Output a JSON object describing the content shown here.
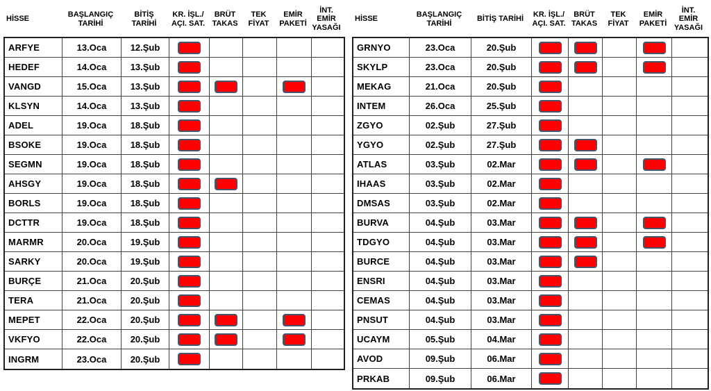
{
  "page": {
    "background": "#ffffff"
  },
  "colors": {
    "badge_fill": "#ff0000",
    "badge_border": "#44546a",
    "grid_line": "#3f3f3f",
    "outer_border": "#1f1f1f",
    "text": "#000000"
  },
  "column_keys": [
    "hisse",
    "baslangic-tarihi",
    "bitis-tarihi",
    "kr-isl-aci-sat",
    "brut-takas",
    "tek-fiyat",
    "emir-paketi",
    "int-emir-yasagi"
  ],
  "flag_keys": [
    "kr-isl-aci-sat",
    "brut-takas",
    "tek-fiyat",
    "emir-paketi",
    "int-emir-yasagi"
  ],
  "tables": [
    {
      "name": "left",
      "headers": [
        "HİSSE",
        "BAŞLANGIÇ\nTARİHİ",
        "BİTİŞ\nTARİHİ",
        "KR. İŞL./\nAÇI. SAT.",
        "BRÜT\nTAKAS",
        "TEK\nFİYAT",
        "EMİR\nPAKETİ",
        "İNT.\nEMİR\nYASAĞI"
      ],
      "rows": [
        {
          "hisse": "ARFYE",
          "baslangic": "13.Oca",
          "bitis": "12.Şub",
          "flags": [
            1,
            0,
            0,
            0,
            0
          ]
        },
        {
          "hisse": "HEDEF",
          "baslangic": "14.Oca",
          "bitis": "13.Şub",
          "flags": [
            1,
            0,
            0,
            0,
            0
          ]
        },
        {
          "hisse": "VANGD",
          "baslangic": "15.Oca",
          "bitis": "13.Şub",
          "flags": [
            1,
            1,
            0,
            1,
            0
          ]
        },
        {
          "hisse": "KLSYN",
          "baslangic": "14.Oca",
          "bitis": "13.Şub",
          "flags": [
            1,
            0,
            0,
            0,
            0
          ]
        },
        {
          "hisse": "ADEL",
          "baslangic": "19.Oca",
          "bitis": "18.Şub",
          "flags": [
            1,
            0,
            0,
            0,
            0
          ]
        },
        {
          "hisse": "BSOKE",
          "baslangic": "19.Oca",
          "bitis": "18.Şub",
          "flags": [
            1,
            0,
            0,
            0,
            0
          ]
        },
        {
          "hisse": "SEGMN",
          "baslangic": "19.Oca",
          "bitis": "18.Şub",
          "flags": [
            1,
            0,
            0,
            0,
            0
          ]
        },
        {
          "hisse": "AHSGY",
          "baslangic": "19.Oca",
          "bitis": "18.Şub",
          "flags": [
            1,
            1,
            0,
            0,
            0
          ]
        },
        {
          "hisse": "BORLS",
          "baslangic": "19.Oca",
          "bitis": "18.Şub",
          "flags": [
            1,
            0,
            0,
            0,
            0
          ]
        },
        {
          "hisse": "DCTTR",
          "baslangic": "19.Oca",
          "bitis": "18.Şub",
          "flags": [
            1,
            0,
            0,
            0,
            0
          ]
        },
        {
          "hisse": "MARMR",
          "baslangic": "20.Oca",
          "bitis": "19.Şub",
          "flags": [
            1,
            0,
            0,
            0,
            0
          ]
        },
        {
          "hisse": "SARKY",
          "baslangic": "20.Oca",
          "bitis": "19.Şub",
          "flags": [
            1,
            0,
            0,
            0,
            0
          ]
        },
        {
          "hisse": "BURÇE",
          "baslangic": "21.Oca",
          "bitis": "20.Şub",
          "flags": [
            1,
            0,
            0,
            0,
            0
          ]
        },
        {
          "hisse": "TERA",
          "baslangic": "21.Oca",
          "bitis": "20.Şub",
          "flags": [
            1,
            0,
            0,
            0,
            0
          ]
        },
        {
          "hisse": "MEPET",
          "baslangic": "22.Oca",
          "bitis": "20.Şub",
          "flags": [
            1,
            1,
            0,
            1,
            0
          ]
        },
        {
          "hisse": "VKFYO",
          "baslangic": "22.Oca",
          "bitis": "20.Şub",
          "flags": [
            1,
            1,
            0,
            1,
            0
          ]
        },
        {
          "hisse": "INGRM",
          "baslangic": "23.Oca",
          "bitis": "20.Şub",
          "flags": [
            1,
            0,
            0,
            0,
            0
          ]
        }
      ]
    },
    {
      "name": "right",
      "headers": [
        "HİSSE",
        "BAŞLANGIÇ\nTARİHİ",
        "BİTİŞ TARİHİ",
        "KR. İŞL./\nAÇI. SAT.",
        "BRÜT\nTAKAS",
        "TEK\nFİYAT",
        "EMİR\nPAKETİ",
        "İNT.\nEMİR\nYASAĞI"
      ],
      "rows": [
        {
          "hisse": "GRNYO",
          "baslangic": "23.Oca",
          "bitis": "20.Şub",
          "flags": [
            1,
            1,
            0,
            1,
            0
          ]
        },
        {
          "hisse": "SKYLP",
          "baslangic": "23.Oca",
          "bitis": "20.Şub",
          "flags": [
            1,
            1,
            0,
            1,
            0
          ]
        },
        {
          "hisse": "MEKAG",
          "baslangic": "21.Oca",
          "bitis": "20.Şub",
          "flags": [
            1,
            0,
            0,
            0,
            0
          ]
        },
        {
          "hisse": "INTEM",
          "baslangic": "26.Oca",
          "bitis": "25.Şub",
          "flags": [
            1,
            0,
            0,
            0,
            0
          ]
        },
        {
          "hisse": "ZGYO",
          "baslangic": "02.Şub",
          "bitis": "27.Şub",
          "flags": [
            1,
            0,
            0,
            0,
            0
          ]
        },
        {
          "hisse": "YGYO",
          "baslangic": "02.Şub",
          "bitis": "27.Şub",
          "flags": [
            1,
            1,
            0,
            0,
            0
          ]
        },
        {
          "hisse": "ATLAS",
          "baslangic": "03.Şub",
          "bitis": "02.Mar",
          "flags": [
            1,
            1,
            0,
            1,
            0
          ]
        },
        {
          "hisse": "IHAAS",
          "baslangic": "03.Şub",
          "bitis": "02.Mar",
          "flags": [
            1,
            0,
            0,
            0,
            0
          ]
        },
        {
          "hisse": "DMSAS",
          "baslangic": "03.Şub",
          "bitis": "02.Mar",
          "flags": [
            1,
            0,
            0,
            0,
            0
          ]
        },
        {
          "hisse": "BURVA",
          "baslangic": "04.Şub",
          "bitis": "03.Mar",
          "flags": [
            1,
            1,
            0,
            1,
            0
          ]
        },
        {
          "hisse": "TDGYO",
          "baslangic": "04.Şub",
          "bitis": "03.Mar",
          "flags": [
            1,
            1,
            0,
            1,
            0
          ]
        },
        {
          "hisse": "BURCE",
          "baslangic": "04.Şub",
          "bitis": "03.Mar",
          "flags": [
            1,
            1,
            0,
            0,
            0
          ]
        },
        {
          "hisse": "ENSRI",
          "baslangic": "04.Şub",
          "bitis": "03.Mar",
          "flags": [
            1,
            0,
            0,
            0,
            0
          ]
        },
        {
          "hisse": "CEMAS",
          "baslangic": "04.Şub",
          "bitis": "03.Mar",
          "flags": [
            1,
            0,
            0,
            0,
            0
          ]
        },
        {
          "hisse": "PNSUT",
          "baslangic": "04.Şub",
          "bitis": "03.Mar",
          "flags": [
            1,
            0,
            0,
            0,
            0
          ]
        },
        {
          "hisse": "UCAYM",
          "baslangic": "05.Şub",
          "bitis": "04.Mar",
          "flags": [
            1,
            0,
            0,
            0,
            0
          ]
        },
        {
          "hisse": "AVOD",
          "baslangic": "09.Şub",
          "bitis": "06.Mar",
          "flags": [
            1,
            0,
            0,
            0,
            0
          ]
        },
        {
          "hisse": "PRKAB",
          "baslangic": "09.Şub",
          "bitis": "06.Mar",
          "flags": [
            1,
            0,
            0,
            0,
            0
          ]
        }
      ]
    }
  ]
}
